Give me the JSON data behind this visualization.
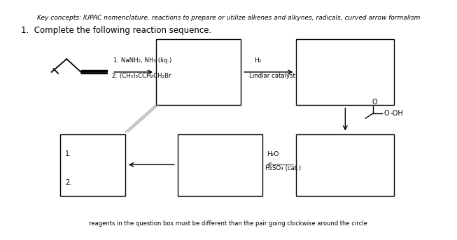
{
  "subtitle": "Key concepts: IUPAC nomenclature, reactions to prepare or utilize alkenes and alkynes, radicals, curved arrow formalism",
  "question": "1.  Complete the following reaction sequence.",
  "reagent1_line1": "1. NaNH₂, NH₃ (liq.)",
  "reagent1_line2": "2. (CH₃)₃CCH₂CH₂Br",
  "reagent2_line1": "H₂",
  "reagent2_line2": "Lindlar catalyst",
  "reagent3_line1": "H₂O",
  "reagent3_line2": "H₂SO₄ (cat.)",
  "footer": "reagents in the question box must be different than the pair going clockwise around the circle",
  "background_color": "#ffffff",
  "text_color": "#000000"
}
